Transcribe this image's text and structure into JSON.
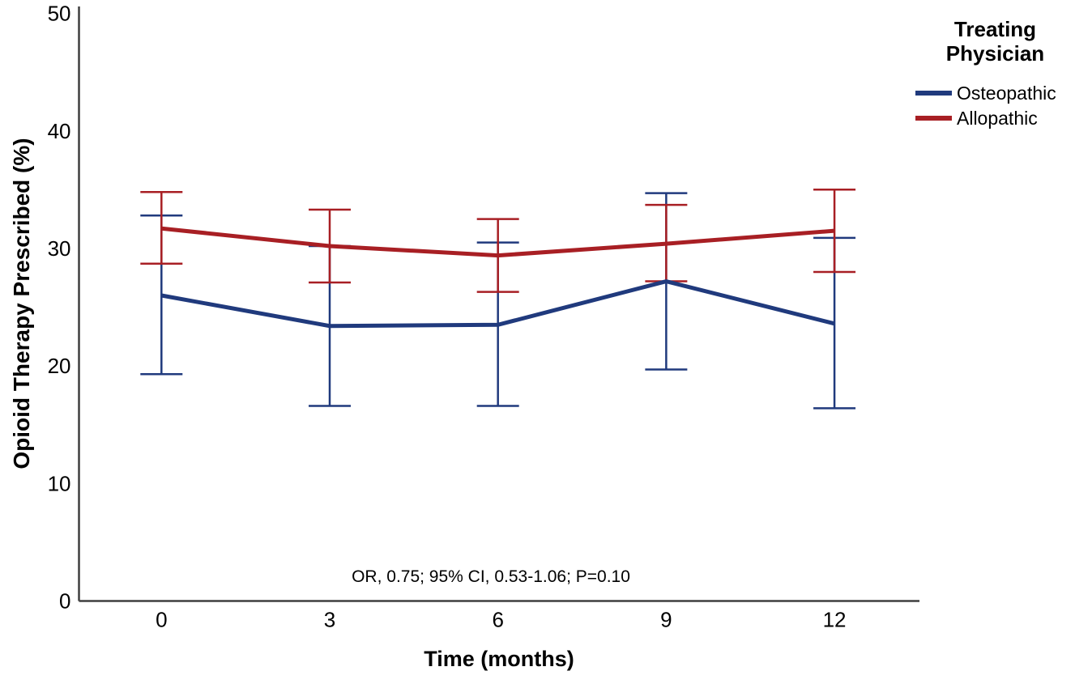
{
  "figure": {
    "background": "#ffffff",
    "axis_color": "#3f3f3f",
    "text_color": "#000000"
  },
  "chart_data": {
    "type": "line",
    "title": "",
    "xlabel": "Time (months)",
    "ylabel": "Opioid Therapy Prescribed (%)",
    "x": [
      0,
      3,
      6,
      9,
      12
    ],
    "xtick_labels": [
      "0",
      "3",
      "6",
      "9",
      "12"
    ],
    "yticks": [
      0,
      10,
      20,
      30,
      40,
      50
    ],
    "ylim": [
      0,
      50
    ],
    "xlim": [
      -1.5,
      13.5
    ],
    "grid": false,
    "error_bars": "95% CI whiskers with caps, colored per series",
    "annotation": "OR, 0.75; 95% CI, 0.53-1.06; P=0.10",
    "legend": {
      "title": "Treating Physician",
      "position": "outside-top-right"
    },
    "series": [
      {
        "name": "Osteopathic",
        "color": "#203a7d",
        "values": [
          26.0,
          23.4,
          23.5,
          27.2,
          23.6
        ],
        "ci_low": [
          19.3,
          16.6,
          16.6,
          19.7,
          16.4
        ],
        "ci_high": [
          32.8,
          30.2,
          30.5,
          34.7,
          30.9
        ]
      },
      {
        "name": "Allopathic",
        "color": "#a81f24",
        "values": [
          31.7,
          30.2,
          29.4,
          30.4,
          31.5
        ],
        "ci_low": [
          28.7,
          27.1,
          26.3,
          27.2,
          28.0
        ],
        "ci_high": [
          34.8,
          33.3,
          32.5,
          33.7,
          35.0
        ]
      }
    ]
  }
}
